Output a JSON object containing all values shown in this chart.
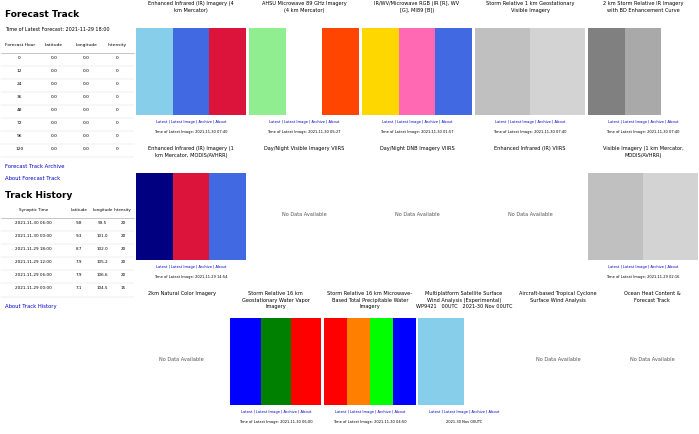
{
  "title": "Forecast Track",
  "latest_forecast_time": "Time of Latest Forecast: 2021-11-29 18:00",
  "forecast_table_headers": [
    "Forecast Hour",
    "Latitude",
    "Longitude",
    "Intensity"
  ],
  "forecast_table_rows": [
    [
      0,
      0.0,
      0.0,
      0
    ],
    [
      12,
      0.0,
      0.0,
      0
    ],
    [
      24,
      0.0,
      0.0,
      0
    ],
    [
      36,
      0.0,
      0.0,
      0
    ],
    [
      48,
      0.0,
      0.0,
      0
    ],
    [
      72,
      0.0,
      0.0,
      0
    ],
    [
      96,
      0.0,
      0.0,
      0
    ],
    [
      120,
      0.0,
      0.0,
      0
    ]
  ],
  "forecast_links": [
    "Forecast Track Archive",
    "About Forecast Track"
  ],
  "track_history_title": "Track History",
  "track_table_headers": [
    "Synoptic Time",
    "Latitude",
    "Longitude",
    "Intensity"
  ],
  "track_table_rows": [
    [
      "2021-11-30 06:00",
      9.8,
      99.5,
      20
    ],
    [
      "2021-11-30 00:00",
      9.3,
      101.0,
      20
    ],
    [
      "2021-11-29 18:00",
      8.7,
      102.0,
      20
    ],
    [
      "2021-11-29 12:00",
      7.9,
      105.2,
      20
    ],
    [
      "2021-11-29 06:00",
      7.9,
      106.6,
      20
    ],
    [
      "2021-11-29 00:00",
      7.1,
      104.5,
      15
    ]
  ],
  "track_links": [
    "About Track History"
  ],
  "row1_titles": [
    "Enhanced Infrared (IR) Imagery (4\nkm Mercator)",
    "AHSU Microwave 89 GHz Imagery\n(4 km Mercator)",
    "IR/WV/Microwave RGB (IR [R], WV\n[G], MI89 [B])",
    "Storm Relative 1 km Geostationary\nVisible Imagery",
    "2 km Storm Relative IR Imagery\nwith BD Enhancement Curve"
  ],
  "row1_times": [
    "Time of Latest Image: 2021-11-30 07:40",
    "Time of Latest Image: 2021-11-30 05:27",
    "Time of Latest Image: 2021-11-30 01:57",
    "Time of Latest Image: 2021-11-30 07:40",
    "Time of Latest Image: 2021-11-30 07:40"
  ],
  "row1_no_data": [
    false,
    false,
    false,
    false,
    false
  ],
  "row1_img_colors": [
    [
      "#87ceeb",
      "#4169e1",
      "#dc143c"
    ],
    [
      "#90ee90",
      "#ffffff",
      "#ff4500"
    ],
    [
      "#ffd700",
      "#ff69b4",
      "#4169e1"
    ],
    [
      "#c0c0c0",
      "#d3d3d3"
    ],
    [
      "#808080",
      "#a9a9a9",
      "#ffffff"
    ]
  ],
  "row2_titles": [
    "Enhanced Infrared (IR) Imagery (1\nkm Mercator, MODIS/AVHRR)",
    "Day/Night Visible Imagery VIIRS",
    "Day/Night DNB Imagery VIIRS",
    "Enhanced Infrared (IR) VIIRS",
    "Visible Imagery (1 km Mercator,\nMODIS/AVHRR)"
  ],
  "row2_times": [
    "Time of Latest Image: 2021-11-29 14:54",
    "",
    "",
    "",
    "Time of Latest Image: 2021-11-29 02:16"
  ],
  "row2_no_data": [
    false,
    true,
    true,
    true,
    false
  ],
  "row2_img_colors": [
    [
      "#000080",
      "#dc143c",
      "#4169e1"
    ],
    null,
    null,
    null,
    [
      "#c0c0c0",
      "#d3d3d3"
    ]
  ],
  "row3_titles": [
    "2km Natural Color Imagery",
    "Storm Relative 16 km\nGeostationary Water Vapor\nImagery",
    "Storm Relative 16 km Microwave-\nBased Total Precipitable Water\nImagery",
    "Multiplatform Satellite Surface\nWind Analysis (Experimental)\nWP9421   00UTC   2021-30 Nov 00UTC",
    "Aircraft-based Tropical Cyclone\nSurface Wind Analysis",
    "Ocean Heat Content &\nForecast Track"
  ],
  "row3_times": [
    "",
    "Time of Latest Image: 2021-11-30 06:00",
    "Time of Latest Image: 2021-11-30 04:50",
    "2021-30 Nov 00UTC",
    "",
    ""
  ],
  "row3_no_data": [
    true,
    false,
    false,
    false,
    true,
    true
  ],
  "row3_img_colors": [
    null,
    [
      "#0000ff",
      "#008000",
      "#ff0000"
    ],
    [
      "#ff0000",
      "#ff7f00",
      "#00ff00",
      "#0000ff"
    ],
    [
      "#87ceeb",
      "#ffffff"
    ],
    null,
    null
  ],
  "link_color": "#0000cc",
  "no_data_text": "No Data Available",
  "bg_color": "#ffffff",
  "links_text": "Latest | Latest Image | Archive | About"
}
